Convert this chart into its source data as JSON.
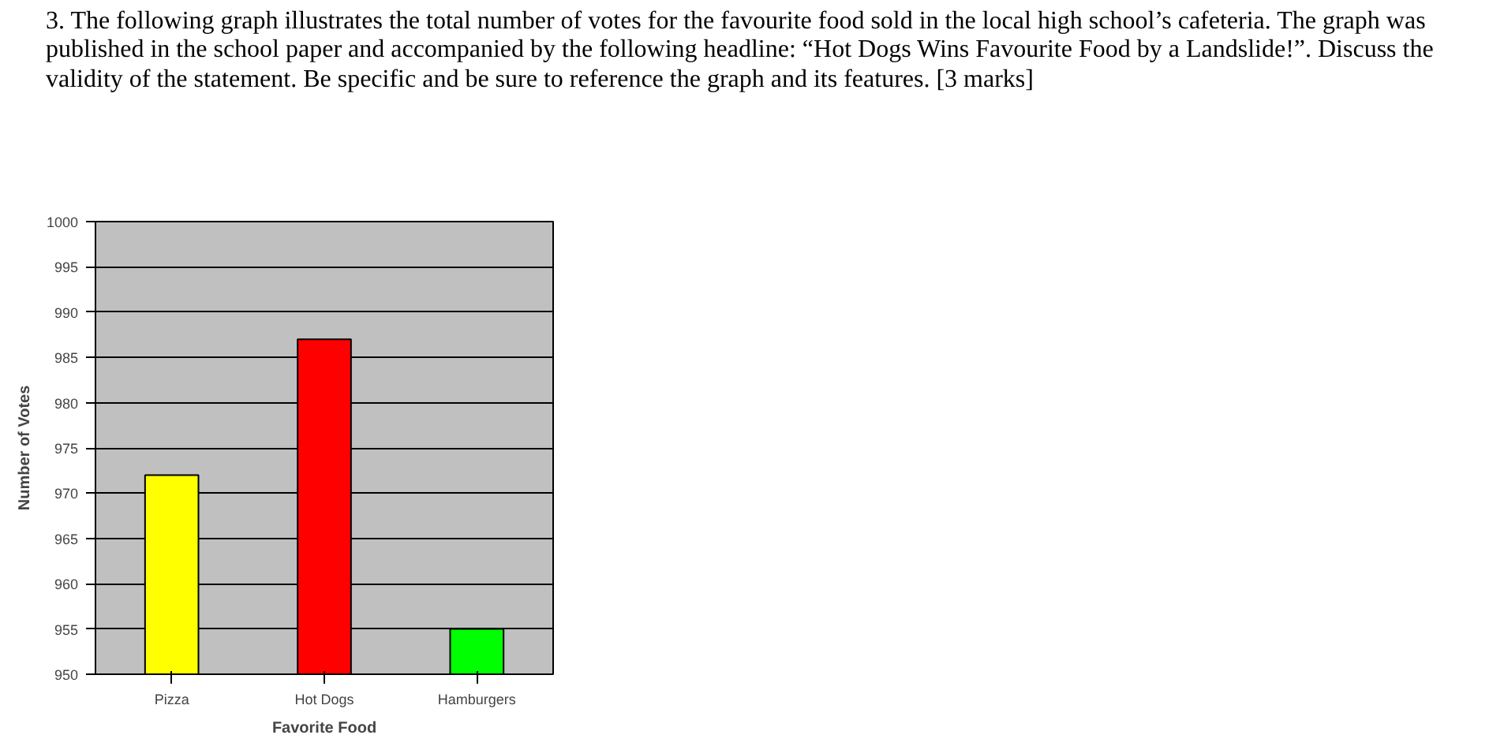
{
  "chart_data": {
    "type": "bar",
    "title": "3. The following graph illustrates the total number of votes for the favourite food sold in the local high school’s cafeteria. The graph was published in the school paper and accompanied by the following headline: “Hot Dogs Wins Favourite Food by a Landslide!”. Discuss the validity of the statement. Be specific and be sure to reference the graph and its features. [3 marks]",
    "xlabel": "Favorite Food",
    "ylabel": "Number of Votes",
    "categories": [
      "Pizza",
      "Hot Dogs",
      "Hamburgers"
    ],
    "values": [
      972,
      987,
      955
    ],
    "colors": [
      "#ffff00",
      "#ff0000",
      "#00ff00"
    ],
    "ylim": [
      950,
      1000
    ],
    "yticks": [
      950,
      955,
      960,
      965,
      970,
      975,
      980,
      985,
      990,
      995,
      1000
    ],
    "grid": "y"
  }
}
